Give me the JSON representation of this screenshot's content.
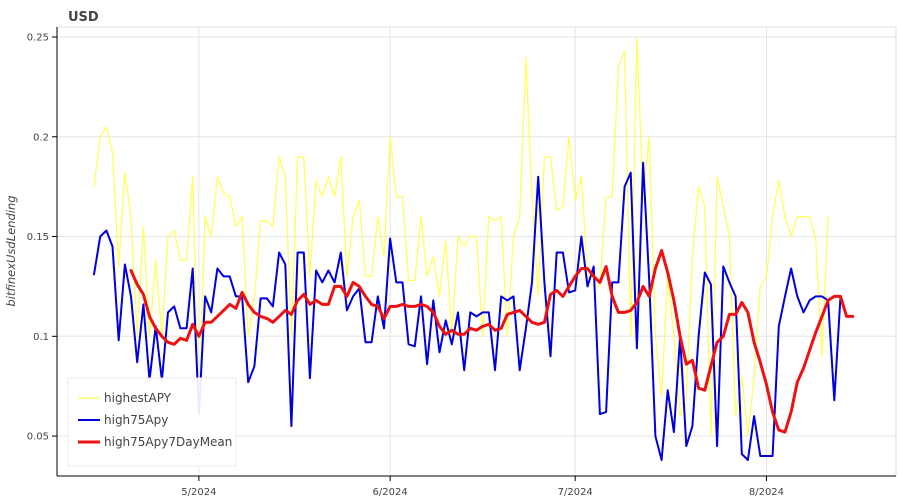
{
  "chart_data": {
    "type": "line",
    "title": "USD",
    "ylabel": "bitfinexUsdLending",
    "xlabel": "",
    "ylim": [
      0.03,
      0.255
    ],
    "yticks": [
      0.05,
      0.1,
      0.15,
      0.2,
      0.25
    ],
    "ytick_labels": [
      "0.05",
      "0.1",
      "0.15",
      "0.2",
      "0.25"
    ],
    "xlim": [
      "2024-04-08",
      "2024-08-22"
    ],
    "xticks": [
      "2024-05-01",
      "2024-06-01",
      "2024-07-01",
      "2024-08-01"
    ],
    "xtick_labels": [
      "5/2024",
      "6/2024",
      "7/2024",
      "8/2024"
    ],
    "grid": true,
    "legend_position": "bottom-left",
    "start_date": "2024-04-14",
    "series": [
      {
        "name": "highestAPY",
        "color": "#ffff55",
        "width": 1.2,
        "values": [
          0.175,
          0.2,
          0.205,
          0.192,
          0.135,
          0.182,
          0.16,
          0.1,
          0.155,
          0.1,
          0.138,
          0.1,
          0.15,
          0.153,
          0.138,
          0.138,
          0.18,
          0.06,
          0.16,
          0.15,
          0.18,
          0.172,
          0.17,
          0.155,
          0.16,
          0.1,
          0.12,
          0.158,
          0.158,
          0.155,
          0.19,
          0.18,
          0.1,
          0.19,
          0.19,
          0.13,
          0.178,
          0.17,
          0.18,
          0.17,
          0.19,
          0.13,
          0.16,
          0.168,
          0.13,
          0.13,
          0.16,
          0.14,
          0.2,
          0.17,
          0.17,
          0.128,
          0.128,
          0.16,
          0.13,
          0.14,
          0.12,
          0.148,
          0.1,
          0.15,
          0.145,
          0.15,
          0.15,
          0.1,
          0.16,
          0.158,
          0.16,
          0.1,
          0.15,
          0.16,
          0.24,
          0.17,
          0.12,
          0.19,
          0.19,
          0.163,
          0.165,
          0.2,
          0.168,
          0.18,
          0.13,
          0.125,
          0.125,
          0.17,
          0.17,
          0.235,
          0.243,
          0.1,
          0.25,
          0.17,
          0.2,
          0.1,
          0.07,
          0.13,
          0.1,
          0.06,
          0.07,
          0.14,
          0.175,
          0.165,
          0.05,
          0.18,
          0.165,
          0.15,
          0.06,
          0.08,
          0.05,
          0.08,
          0.125,
          0.13,
          0.16,
          0.178,
          0.16,
          0.15,
          0.16,
          0.16,
          0.16,
          0.148,
          0.09,
          0.16
        ]
      },
      {
        "name": "high75Apy",
        "color": "#0000dd",
        "width": 2,
        "values": [
          0.131,
          0.15,
          0.153,
          0.145,
          0.098,
          0.136,
          0.12,
          0.087,
          0.116,
          0.078,
          0.105,
          0.078,
          0.112,
          0.115,
          0.104,
          0.104,
          0.134,
          0.061,
          0.12,
          0.112,
          0.134,
          0.13,
          0.13,
          0.12,
          0.12,
          0.077,
          0.085,
          0.119,
          0.119,
          0.115,
          0.142,
          0.136,
          0.055,
          0.142,
          0.142,
          0.079,
          0.133,
          0.127,
          0.133,
          0.127,
          0.142,
          0.113,
          0.12,
          0.124,
          0.097,
          0.097,
          0.12,
          0.104,
          0.149,
          0.127,
          0.127,
          0.096,
          0.095,
          0.12,
          0.086,
          0.118,
          0.092,
          0.108,
          0.096,
          0.112,
          0.083,
          0.112,
          0.11,
          0.112,
          0.112,
          0.083,
          0.12,
          0.118,
          0.12,
          0.083,
          0.104,
          0.127,
          0.18,
          0.127,
          0.09,
          0.142,
          0.142,
          0.122,
          0.123,
          0.15,
          0.125,
          0.135,
          0.061,
          0.062,
          0.127,
          0.127,
          0.175,
          0.182,
          0.094,
          0.187,
          0.128,
          0.05,
          0.038,
          0.073,
          0.052,
          0.1,
          0.045,
          0.055,
          0.1,
          0.132,
          0.126,
          0.045,
          0.135,
          0.127,
          0.12,
          0.041,
          0.038,
          0.06,
          0.04,
          0.04,
          0.04,
          0.105,
          0.12,
          0.134,
          0.12,
          0.112,
          0.118,
          0.12,
          0.12,
          0.118,
          0.068,
          0.12
        ]
      },
      {
        "name": "high75Apy7DayMean",
        "color": "#ee1111",
        "width": 3,
        "offset": 6,
        "values": [
          0.133,
          0.126,
          0.121,
          0.11,
          0.104,
          0.1,
          0.097,
          0.096,
          0.099,
          0.098,
          0.106,
          0.1,
          0.107,
          0.107,
          0.11,
          0.113,
          0.116,
          0.114,
          0.122,
          0.116,
          0.112,
          0.11,
          0.109,
          0.107,
          0.11,
          0.113,
          0.111,
          0.118,
          0.121,
          0.116,
          0.118,
          0.116,
          0.116,
          0.125,
          0.125,
          0.12,
          0.127,
          0.125,
          0.12,
          0.116,
          0.115,
          0.109,
          0.115,
          0.115,
          0.116,
          0.115,
          0.115,
          0.116,
          0.115,
          0.112,
          0.105,
          0.101,
          0.103,
          0.101,
          0.101,
          0.104,
          0.103,
          0.105,
          0.106,
          0.103,
          0.104,
          0.111,
          0.112,
          0.113,
          0.11,
          0.107,
          0.106,
          0.107,
          0.121,
          0.123,
          0.12,
          0.125,
          0.13,
          0.134,
          0.134,
          0.13,
          0.127,
          0.135,
          0.12,
          0.112,
          0.112,
          0.113,
          0.117,
          0.125,
          0.12,
          0.134,
          0.143,
          0.132,
          0.118,
          0.1,
          0.086,
          0.088,
          0.074,
          0.073,
          0.085,
          0.097,
          0.1,
          0.111,
          0.111,
          0.117,
          0.112,
          0.097,
          0.087,
          0.076,
          0.062,
          0.053,
          0.052,
          0.062,
          0.077,
          0.084,
          0.093,
          0.102,
          0.11,
          0.118,
          0.12,
          0.12,
          0.11,
          0.11
        ]
      }
    ]
  }
}
